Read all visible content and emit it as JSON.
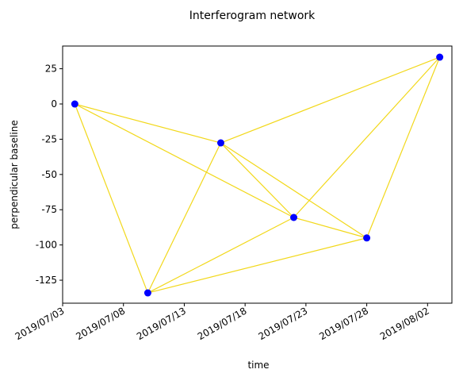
{
  "chart_data": {
    "type": "network",
    "title": "Interferogram network",
    "x_label": "time",
    "y_label": "perpendicular baseline",
    "x": [
      "2019/07/04",
      "2019/07/10",
      "2019/07/16",
      "2019/07/22",
      "2019/07/28",
      "2019/08/03"
    ],
    "values": [
      0,
      -134,
      -27.6,
      -80.5,
      -95,
      33.2
    ],
    "edges": [
      [
        0,
        1
      ],
      [
        0,
        2
      ],
      [
        0,
        3
      ],
      [
        1,
        2
      ],
      [
        1,
        3
      ],
      [
        1,
        4
      ],
      [
        2,
        3
      ],
      [
        2,
        4
      ],
      [
        2,
        5
      ],
      [
        3,
        4
      ],
      [
        3,
        5
      ],
      [
        4,
        5
      ]
    ],
    "point_color": "#0000ff",
    "edge_color": "#f2d81a",
    "xlim": [
      "2019/07/03",
      "2019/08/04"
    ],
    "xticks": [
      "2019/07/03",
      "2019/07/08",
      "2019/07/13",
      "2019/07/18",
      "2019/07/23",
      "2019/07/28",
      "2019/08/02"
    ],
    "ylim": [
      -141.3,
      41.1
    ],
    "yticks": [
      25,
      0,
      -25,
      -50,
      -75,
      -100,
      -125
    ]
  }
}
